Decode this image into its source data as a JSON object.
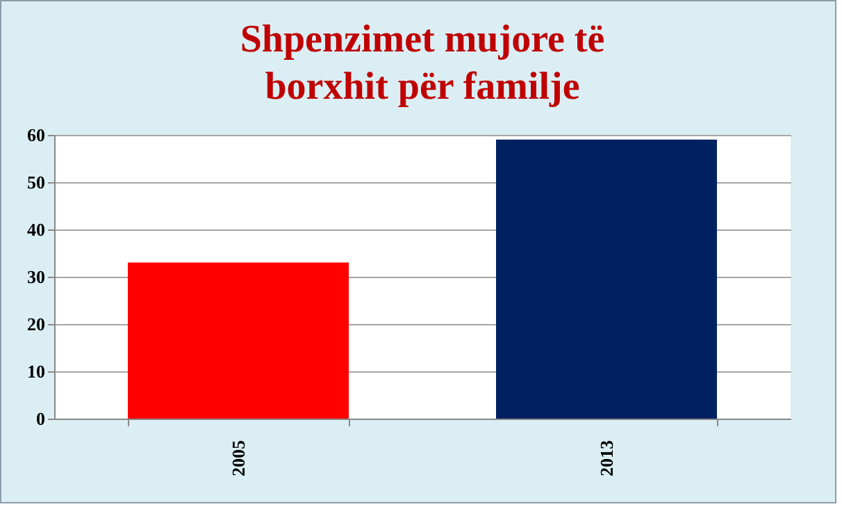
{
  "chart_data": {
    "type": "bar",
    "title": "Shpenzimet mujore të borxhit për familje",
    "categories": [
      "2005",
      "2013"
    ],
    "values": [
      33,
      59
    ],
    "colors": [
      "#ff0000",
      "#002060"
    ],
    "ylim": [
      0,
      60
    ],
    "yticks": [
      0,
      10,
      20,
      30,
      40,
      50,
      60
    ],
    "grid": "y"
  }
}
